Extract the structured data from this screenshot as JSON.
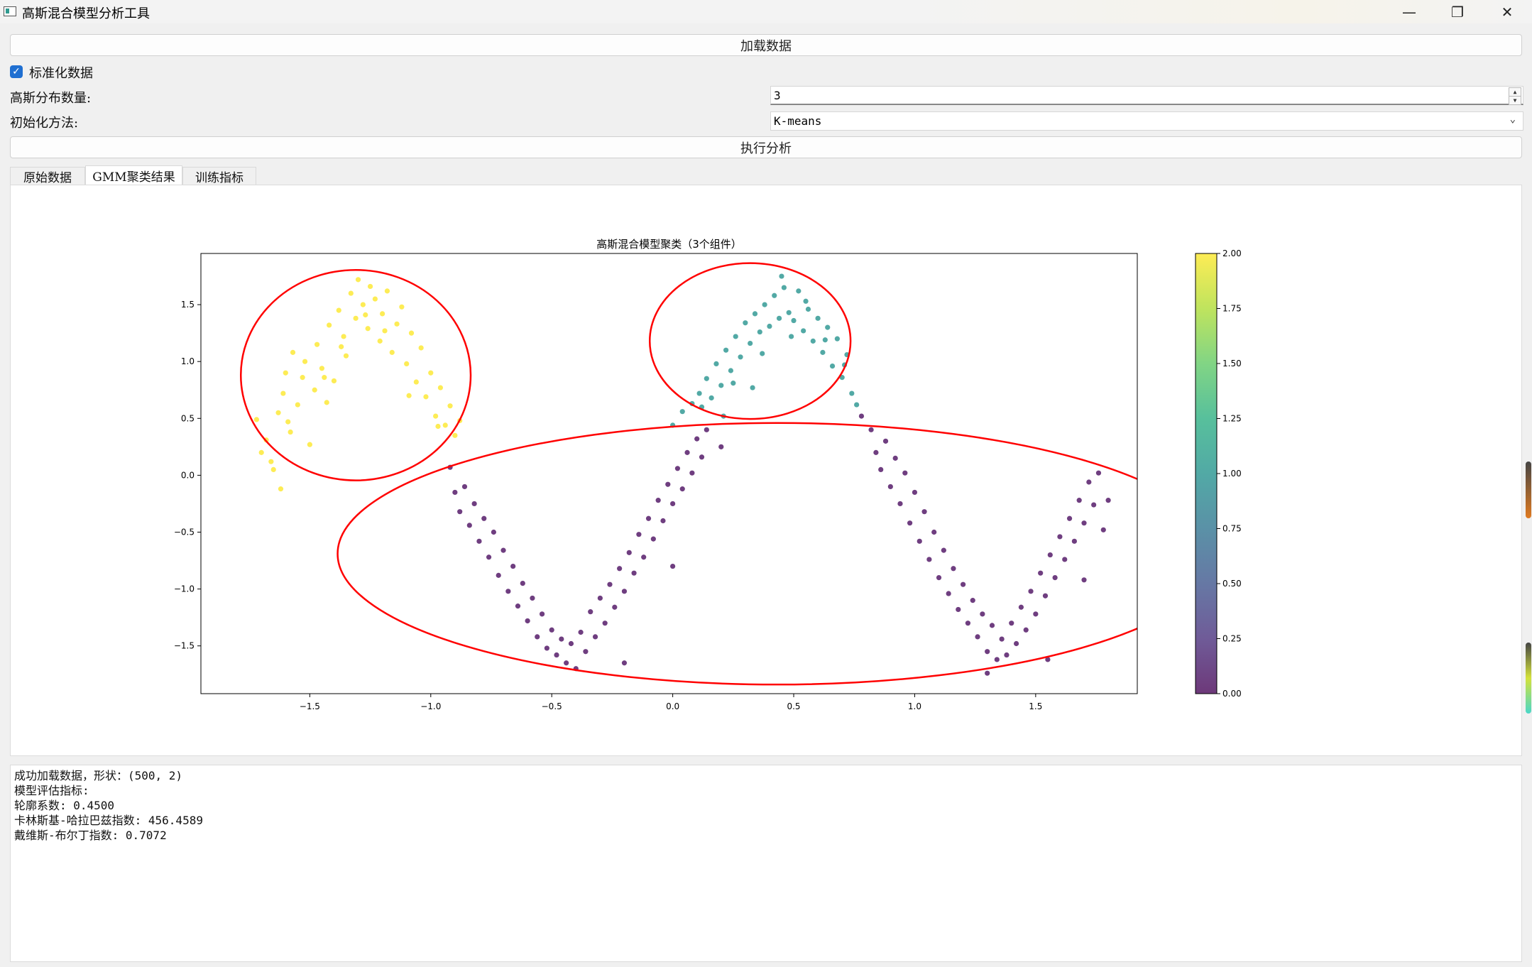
{
  "window": {
    "title": "高斯混合模型分析工具",
    "minimize_glyph": "—",
    "maximize_glyph": "❐",
    "close_glyph": "✕"
  },
  "controls": {
    "load_button": "加载数据",
    "standardize_label": "标准化数据",
    "standardize_checked": true,
    "n_components_label": "高斯分布数量:",
    "n_components_value": "3",
    "init_method_label": "初始化方法:",
    "init_method_value": "K-means",
    "run_button": "执行分析"
  },
  "tabs": [
    {
      "label": "原始数据",
      "active": false
    },
    {
      "label": "GMM聚类结果",
      "active": true
    },
    {
      "label": "训练指标",
      "active": false
    }
  ],
  "log": {
    "lines": [
      "成功加载数据，形状：(500, 2)",
      "模型评估指标:",
      "轮廓系数: 0.4500",
      "卡林斯基-哈拉巴兹指数: 456.4589",
      "戴维斯-布尔丁指数: 0.7072"
    ]
  },
  "chart_data": {
    "type": "scatter",
    "title": "高斯混合模型聚类（3个组件）",
    "xlim": [
      -1.95,
      1.92
    ],
    "ylim": [
      -1.92,
      1.95
    ],
    "xticks": [
      -1.5,
      -1.0,
      -0.5,
      0.0,
      0.5,
      1.0,
      1.5
    ],
    "xtick_labels": [
      "−1.5",
      "−1.0",
      "−0.5",
      "0.0",
      "0.5",
      "1.0",
      "1.5"
    ],
    "yticks": [
      -1.5,
      -1.0,
      -0.5,
      0.0,
      0.5,
      1.0,
      1.5
    ],
    "ytick_labels": [
      "−1.5",
      "−1.0",
      "−0.5",
      "0.0",
      "0.5",
      "1.0",
      "1.5"
    ],
    "colorbar": {
      "colormap": "viridis",
      "range": [
        0,
        2
      ],
      "ticks": [
        0.0,
        0.25,
        0.5,
        0.75,
        1.0,
        1.25,
        1.5,
        1.75,
        2.0
      ],
      "tick_labels": [
        "0.00",
        "0.25",
        "0.50",
        "0.75",
        "1.00",
        "1.25",
        "1.50",
        "1.75",
        "2.00"
      ]
    },
    "colors": {
      "cluster_0": "#46085c",
      "cluster_1": "#21918c",
      "cluster_2": "#fde725",
      "ellipse": "#ff0000"
    },
    "grid": false,
    "ellipses": [
      {
        "cx": -1.31,
        "cy": 0.88,
        "width": 0.95,
        "height": 1.85,
        "angle": 0
      },
      {
        "cx": 0.32,
        "cy": 1.18,
        "width": 0.83,
        "height": 1.37,
        "angle": 0
      },
      {
        "cx": 0.43,
        "cy": -0.69,
        "width": 3.63,
        "height": 2.3,
        "angle": 0
      }
    ],
    "series": [
      {
        "cluster": 2,
        "points": [
          [
            -1.72,
            0.49
          ],
          [
            -1.68,
            0.31
          ],
          [
            -1.66,
            0.12
          ],
          [
            -1.63,
            0.55
          ],
          [
            -1.61,
            0.72
          ],
          [
            -1.6,
            0.9
          ],
          [
            -1.58,
            0.38
          ],
          [
            -1.57,
            1.08
          ],
          [
            -1.55,
            0.62
          ],
          [
            -1.53,
            0.86
          ],
          [
            -1.52,
            1.0
          ],
          [
            -1.5,
            0.27
          ],
          [
            -1.48,
            0.75
          ],
          [
            -1.47,
            1.15
          ],
          [
            -1.45,
            0.94
          ],
          [
            -1.43,
            0.64
          ],
          [
            -1.42,
            1.32
          ],
          [
            -1.4,
            0.83
          ],
          [
            -1.38,
            1.45
          ],
          [
            -1.36,
            1.22
          ],
          [
            -1.35,
            1.05
          ],
          [
            -1.33,
            1.6
          ],
          [
            -1.31,
            1.38
          ],
          [
            -1.3,
            1.72
          ],
          [
            -1.28,
            1.5
          ],
          [
            -1.26,
            1.29
          ],
          [
            -1.25,
            1.66
          ],
          [
            -1.23,
            1.55
          ],
          [
            -1.21,
            1.18
          ],
          [
            -1.2,
            1.42
          ],
          [
            -1.18,
            1.62
          ],
          [
            -1.16,
            1.08
          ],
          [
            -1.14,
            1.33
          ],
          [
            -1.12,
            1.48
          ],
          [
            -1.1,
            0.98
          ],
          [
            -1.08,
            1.25
          ],
          [
            -1.06,
            0.82
          ],
          [
            -1.04,
            1.12
          ],
          [
            -1.02,
            0.69
          ],
          [
            -1.0,
            0.9
          ],
          [
            -0.98,
            0.52
          ],
          [
            -0.96,
            0.77
          ],
          [
            -0.94,
            0.44
          ],
          [
            -0.92,
            0.61
          ],
          [
            -0.9,
            0.35
          ],
          [
            -0.88,
            0.48
          ],
          [
            -1.65,
            0.05
          ],
          [
            -1.62,
            -0.12
          ],
          [
            -1.7,
            0.2
          ],
          [
            -1.59,
            0.47
          ],
          [
            -1.44,
            0.86
          ],
          [
            -1.37,
            1.13
          ],
          [
            -1.27,
            1.41
          ],
          [
            -1.19,
            1.27
          ],
          [
            -1.09,
            0.7
          ],
          [
            -0.97,
            0.43
          ]
        ]
      },
      {
        "cluster": 1,
        "points": [
          [
            0.0,
            0.44
          ],
          [
            0.04,
            0.56
          ],
          [
            0.08,
            0.63
          ],
          [
            0.11,
            0.72
          ],
          [
            0.14,
            0.85
          ],
          [
            0.16,
            0.68
          ],
          [
            0.18,
            0.98
          ],
          [
            0.2,
            0.79
          ],
          [
            0.22,
            1.1
          ],
          [
            0.24,
            0.92
          ],
          [
            0.26,
            1.22
          ],
          [
            0.28,
            1.04
          ],
          [
            0.3,
            1.34
          ],
          [
            0.32,
            1.16
          ],
          [
            0.34,
            1.42
          ],
          [
            0.36,
            1.26
          ],
          [
            0.38,
            1.5
          ],
          [
            0.4,
            1.31
          ],
          [
            0.42,
            1.58
          ],
          [
            0.44,
            1.38
          ],
          [
            0.46,
            1.65
          ],
          [
            0.48,
            1.43
          ],
          [
            0.5,
            1.36
          ],
          [
            0.52,
            1.62
          ],
          [
            0.54,
            1.27
          ],
          [
            0.56,
            1.46
          ],
          [
            0.58,
            1.18
          ],
          [
            0.6,
            1.38
          ],
          [
            0.62,
            1.08
          ],
          [
            0.64,
            1.3
          ],
          [
            0.66,
            0.96
          ],
          [
            0.68,
            1.2
          ],
          [
            0.7,
            0.86
          ],
          [
            0.72,
            1.06
          ],
          [
            0.74,
            0.72
          ],
          [
            0.76,
            0.62
          ],
          [
            0.12,
            0.6
          ],
          [
            0.25,
            0.81
          ],
          [
            0.37,
            1.07
          ],
          [
            0.49,
            1.22
          ],
          [
            0.55,
            1.53
          ],
          [
            0.63,
            1.19
          ],
          [
            0.71,
            0.97
          ],
          [
            0.45,
            1.75
          ],
          [
            0.33,
            0.77
          ],
          [
            0.21,
            0.52
          ]
        ]
      },
      {
        "cluster": 0,
        "points": [
          [
            -0.92,
            0.07
          ],
          [
            -0.9,
            -0.15
          ],
          [
            -0.88,
            -0.32
          ],
          [
            -0.86,
            -0.1
          ],
          [
            -0.84,
            -0.44
          ],
          [
            -0.82,
            -0.25
          ],
          [
            -0.8,
            -0.58
          ],
          [
            -0.78,
            -0.38
          ],
          [
            -0.76,
            -0.72
          ],
          [
            -0.74,
            -0.5
          ],
          [
            -0.72,
            -0.88
          ],
          [
            -0.7,
            -0.66
          ],
          [
            -0.68,
            -1.02
          ],
          [
            -0.66,
            -0.8
          ],
          [
            -0.64,
            -1.15
          ],
          [
            -0.62,
            -0.95
          ],
          [
            -0.6,
            -1.28
          ],
          [
            -0.58,
            -1.08
          ],
          [
            -0.56,
            -1.42
          ],
          [
            -0.54,
            -1.22
          ],
          [
            -0.52,
            -1.52
          ],
          [
            -0.5,
            -1.36
          ],
          [
            -0.48,
            -1.58
          ],
          [
            -0.46,
            -1.44
          ],
          [
            -0.44,
            -1.65
          ],
          [
            -0.42,
            -1.48
          ],
          [
            -0.4,
            -1.7
          ],
          [
            -0.38,
            -1.38
          ],
          [
            -0.36,
            -1.55
          ],
          [
            -0.34,
            -1.2
          ],
          [
            -0.32,
            -1.42
          ],
          [
            -0.3,
            -1.08
          ],
          [
            -0.28,
            -1.3
          ],
          [
            -0.26,
            -0.96
          ],
          [
            -0.24,
            -1.16
          ],
          [
            -0.22,
            -0.82
          ],
          [
            -0.2,
            -1.02
          ],
          [
            -0.18,
            -0.68
          ],
          [
            -0.16,
            -0.86
          ],
          [
            -0.14,
            -0.52
          ],
          [
            -0.12,
            -0.72
          ],
          [
            -0.1,
            -0.38
          ],
          [
            -0.08,
            -0.56
          ],
          [
            -0.06,
            -0.22
          ],
          [
            -0.04,
            -0.4
          ],
          [
            -0.02,
            -0.08
          ],
          [
            0.0,
            -0.25
          ],
          [
            0.02,
            0.06
          ],
          [
            0.04,
            -0.12
          ],
          [
            0.06,
            0.2
          ],
          [
            0.08,
            0.02
          ],
          [
            0.1,
            0.32
          ],
          [
            0.12,
            0.16
          ],
          [
            0.14,
            0.4
          ],
          [
            0.2,
            0.25
          ],
          [
            -0.2,
            -1.65
          ],
          [
            0.0,
            -0.8
          ],
          [
            0.82,
            0.4
          ],
          [
            0.84,
            0.2
          ],
          [
            0.86,
            0.05
          ],
          [
            0.88,
            0.3
          ],
          [
            0.9,
            -0.1
          ],
          [
            0.92,
            0.15
          ],
          [
            0.94,
            -0.25
          ],
          [
            0.96,
            0.02
          ],
          [
            0.98,
            -0.42
          ],
          [
            1.0,
            -0.15
          ],
          [
            1.02,
            -0.58
          ],
          [
            1.04,
            -0.32
          ],
          [
            1.06,
            -0.74
          ],
          [
            1.08,
            -0.5
          ],
          [
            1.1,
            -0.9
          ],
          [
            1.12,
            -0.66
          ],
          [
            1.14,
            -1.04
          ],
          [
            1.16,
            -0.82
          ],
          [
            1.18,
            -1.18
          ],
          [
            1.2,
            -0.96
          ],
          [
            1.22,
            -1.3
          ],
          [
            1.24,
            -1.1
          ],
          [
            1.26,
            -1.42
          ],
          [
            1.28,
            -1.22
          ],
          [
            1.3,
            -1.55
          ],
          [
            1.32,
            -1.32
          ],
          [
            1.34,
            -1.62
          ],
          [
            1.36,
            -1.44
          ],
          [
            1.38,
            -1.58
          ],
          [
            1.4,
            -1.3
          ],
          [
            1.42,
            -1.48
          ],
          [
            1.44,
            -1.16
          ],
          [
            1.46,
            -1.36
          ],
          [
            1.48,
            -1.02
          ],
          [
            1.5,
            -1.22
          ],
          [
            1.52,
            -0.86
          ],
          [
            1.54,
            -1.06
          ],
          [
            1.56,
            -0.7
          ],
          [
            1.58,
            -0.9
          ],
          [
            1.6,
            -0.54
          ],
          [
            1.62,
            -0.74
          ],
          [
            1.64,
            -0.38
          ],
          [
            1.66,
            -0.58
          ],
          [
            1.68,
            -0.22
          ],
          [
            1.7,
            -0.42
          ],
          [
            1.72,
            -0.06
          ],
          [
            1.74,
            -0.26
          ],
          [
            1.76,
            0.02
          ],
          [
            1.78,
            -0.48
          ],
          [
            1.3,
            -1.74
          ],
          [
            1.55,
            -1.62
          ],
          [
            1.7,
            -0.92
          ],
          [
            0.78,
            0.52
          ],
          [
            1.8,
            -0.22
          ]
        ]
      }
    ]
  }
}
